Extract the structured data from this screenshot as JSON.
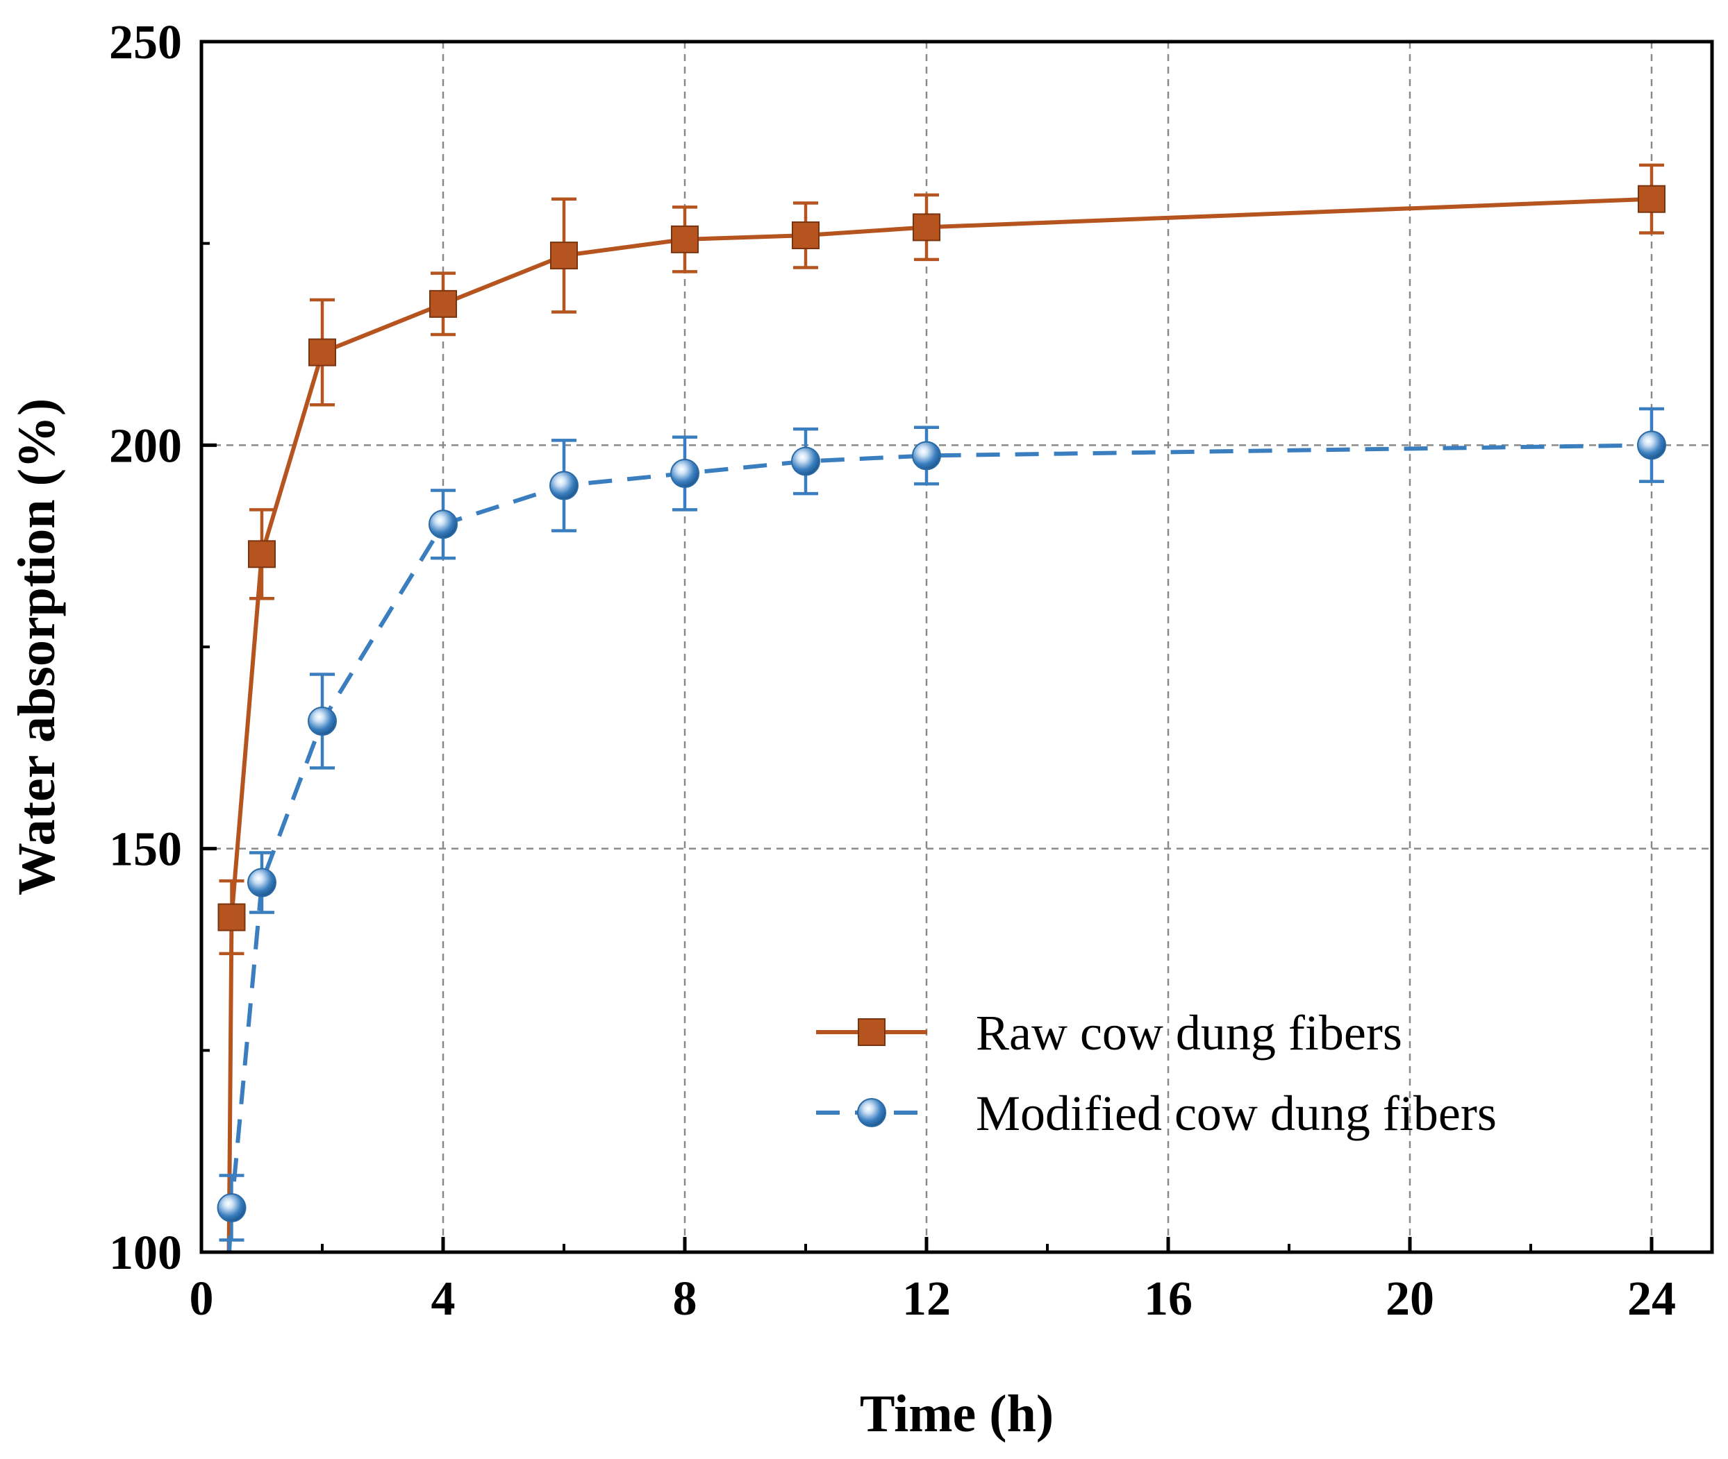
{
  "chart_data": {
    "type": "line",
    "title": "",
    "xlabel": "Time (h)",
    "ylabel": "Water absorption (%)",
    "xlim": [
      0,
      25
    ],
    "ylim": [
      100,
      250
    ],
    "xticks": [
      0,
      4,
      8,
      12,
      16,
      20,
      24
    ],
    "xtick_labels": [
      "0",
      "4",
      "8",
      "12",
      "16",
      "20",
      "24"
    ],
    "yticks": [
      100,
      150,
      200,
      250
    ],
    "ytick_labels": [
      "100",
      "150",
      "200",
      "250"
    ],
    "x_minor_ticks": [
      2,
      6,
      10,
      14,
      18,
      22
    ],
    "y_minor_ticks": [
      125,
      175,
      225
    ],
    "grid": true,
    "legend_position": "bottom-right",
    "series": [
      {
        "name": "Raw cow dung fibers",
        "color": "#b5541e",
        "line_style": "solid",
        "marker": "square",
        "x": [
          0.5,
          1,
          2,
          4,
          6,
          8,
          10,
          12,
          24
        ],
        "y": [
          141.5,
          186.5,
          211.5,
          217.5,
          223.5,
          225.5,
          226,
          227,
          230.5
        ],
        "error": [
          4.5,
          5.5,
          6.5,
          3.8,
          7,
          4,
          4,
          4,
          4.2
        ]
      },
      {
        "name": "Modified cow dung fibers",
        "color": "#3a7ebf",
        "line_style": "dashed",
        "marker": "circle",
        "x": [
          0.5,
          1,
          2,
          4,
          6,
          8,
          10,
          12,
          24
        ],
        "y": [
          105.5,
          145.8,
          165.8,
          190.2,
          195,
          196.5,
          198,
          198.7,
          200
        ],
        "error": [
          4,
          3.7,
          5.8,
          4.2,
          5.6,
          4.5,
          4,
          3.5,
          4.5
        ]
      }
    ]
  }
}
